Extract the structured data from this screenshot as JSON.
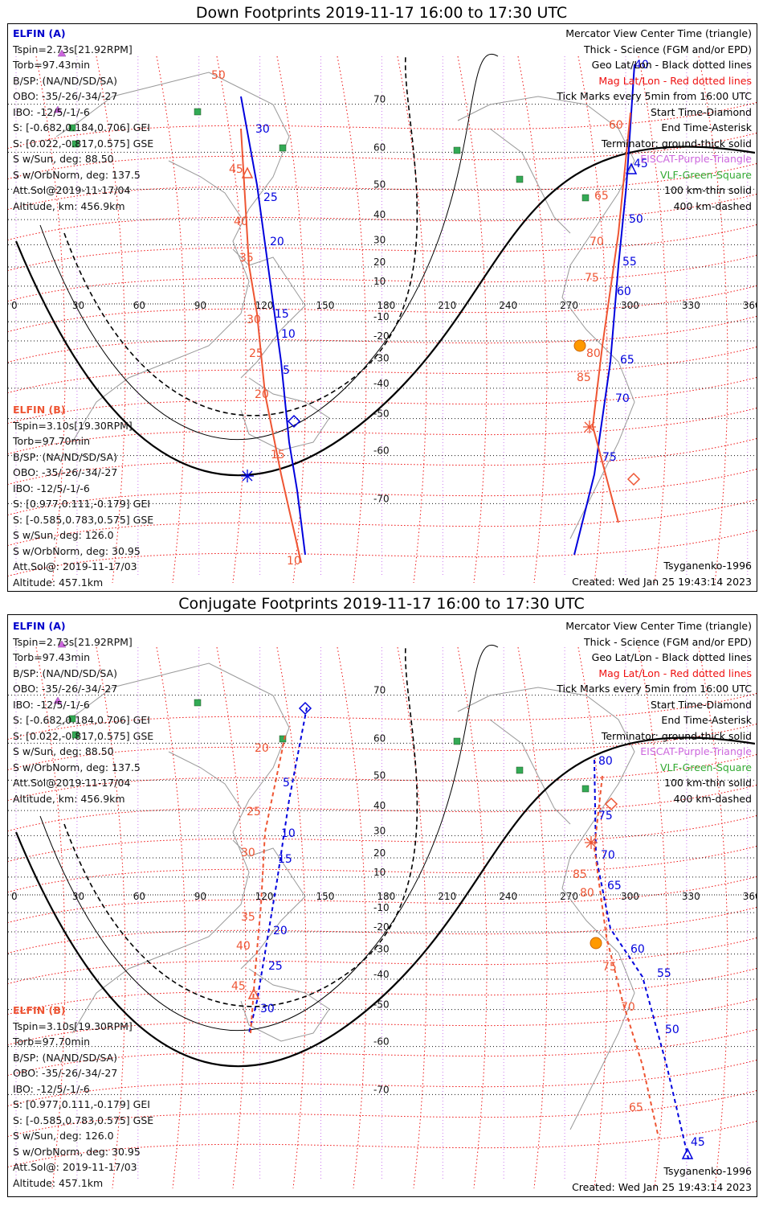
{
  "panels": [
    {
      "title": "Down Footprints 2019-11-17 16:00 to 17:30 UTC",
      "elfin_a": {
        "name": "ELFIN (A)",
        "lines": [
          "Tspin=2.73s[21.92RPM]",
          "Torb=97.43min",
          "B/SP: (NA/ND/SD/SA)",
          "OBO: -35/-26/-34/-27",
          "IBO: -12/5/-1/-6",
          "S: [-0.682,0.184,0.706] GEI",
          "S: [0.022,-0.817,0.575] GSE",
          "S w/Sun, deg: 88.50",
          "S w/OrbNorm, deg: 137.5",
          "Att.Sol@2019-11-17/04",
          "Altitude, km: 456.9km"
        ]
      },
      "elfin_b": {
        "name": "ELFIN (B)",
        "lines": [
          "Tspin=3.10s[19.30RPM]",
          "Torb=97.70min",
          "B/SP: (NA/ND/SD/SA)",
          "OBO: -35/-26/-34/-27",
          "IBO: -12/5/-1/-6",
          "S: [0.977,0.111,-0.179] GEI",
          "S: [-0.585,0.783,0.575] GSE",
          "S w/Sun, deg: 126.0",
          "S w/OrbNorm, deg: 30.95",
          "Att.Sol@: 2019-11-17/03",
          "Altitude: 457.1km"
        ]
      },
      "legend": [
        {
          "text": "Mercator View Center Time (triangle)",
          "color": "#111111"
        },
        {
          "text": "Thick - Science (FGM and/or EPD)",
          "color": "#111111"
        },
        {
          "text": "Geo Lat/Lon - Black dotted lines",
          "color": "#111111"
        },
        {
          "text": "Mag Lat/Lon - Red dotted lines",
          "color": "#ee1111"
        },
        {
          "text": "Tick Marks every 5min from 16:00 UTC",
          "color": "#111111"
        },
        {
          "text": "Start Time-Diamond",
          "color": "#111111"
        },
        {
          "text": "End Time-Asterisk",
          "color": "#111111"
        },
        {
          "text": "Terminator: ground-thick solid",
          "color": "#111111"
        },
        {
          "text": "EISCAT-Purple-Triangle",
          "color": "#cc66dd"
        },
        {
          "text": "VLF-Green-Square",
          "color": "#33aa33"
        },
        {
          "text": "100 km-thin solid",
          "color": "#111111"
        },
        {
          "text": "400 km-dashed",
          "color": "#111111"
        }
      ],
      "model": "Tsyganenko-1996",
      "created": "Created: Wed Jan 25 19:43:14 2023"
    },
    {
      "title": "Conjugate Footprints 2019-11-17 16:00 to 17:30 UTC",
      "elfin_a": {
        "name": "ELFIN (A)",
        "lines": [
          "Tspin=2.73s[21.92RPM]",
          "Torb=97.43min",
          "B/SP: (NA/ND/SD/SA)",
          "OBO: -35/-26/-34/-27",
          "IBO: -12/5/-1/-6",
          "S: [-0.682,0.184,0.706] GEI",
          "S: [0.022,-0.817,0.575] GSE",
          "S w/Sun, deg: 88.50",
          "S w/OrbNorm, deg: 137.5",
          "Att.Sol@2019-11-17/04",
          "Altitude, km: 456.9km"
        ]
      },
      "elfin_b": {
        "name": "ELFIN (B)",
        "lines": [
          "Tspin=3.10s[19.30RPM]",
          "Torb=97.70min",
          "B/SP: (NA/ND/SD/SA)",
          "OBO: -35/-26/-34/-27",
          "IBO: -12/5/-1/-6",
          "S: [0.977,0.111,-0.179] GEI",
          "S: [-0.585,0.783,0.575] GSE",
          "S w/Sun, deg: 126.0",
          "S w/OrbNorm, deg: 30.95",
          "Att.Sol@: 2019-11-17/03",
          "Altitude: 457.1km"
        ]
      },
      "legend": [
        {
          "text": "Mercator View Center Time (triangle)",
          "color": "#111111"
        },
        {
          "text": "Thick - Science (FGM and/or EPD)",
          "color": "#111111"
        },
        {
          "text": "Geo Lat/Lon - Black dotted lines",
          "color": "#111111"
        },
        {
          "text": "Mag Lat/Lon - Red dotted lines",
          "color": "#ee1111"
        },
        {
          "text": "Tick Marks every 5min from 16:00 UTC",
          "color": "#111111"
        },
        {
          "text": "Start Time-Diamond",
          "color": "#111111"
        },
        {
          "text": "End Time-Asterisk",
          "color": "#111111"
        },
        {
          "text": "Terminator: ground-thick solid",
          "color": "#111111"
        },
        {
          "text": "EISCAT-Purple-Triangle",
          "color": "#cc66dd"
        },
        {
          "text": "VLF-Green-Square",
          "color": "#33aa33"
        },
        {
          "text": "100 km-thin solid",
          "color": "#111111"
        },
        {
          "text": "400 km-dashed",
          "color": "#111111"
        }
      ],
      "model": "Tsyganenko-1996",
      "created": "Created: Wed Jan 25 19:43:14 2023"
    }
  ],
  "axis": {
    "lon_ticks": [
      "0",
      "30",
      "60",
      "90",
      "120",
      "150",
      "180",
      "210",
      "240",
      "270",
      "300",
      "330",
      "360"
    ],
    "lat_ticks": [
      "70",
      "60",
      "50",
      "40",
      "30",
      "20",
      "10",
      "-10",
      "-20",
      "-30",
      "-40",
      "-50",
      "-60",
      "-70"
    ]
  },
  "colors": {
    "elfin_a": "#0000dd",
    "elfin_b": "#ee5533",
    "mag_grid": "#ee1111",
    "geo_grid": "#111111",
    "sun": "#ff9900",
    "vlf": "#33aa55",
    "eiscat": "#cc66dd"
  },
  "tracks": {
    "down_a_labels": [
      "30",
      "25",
      "20",
      "15",
      "10",
      "5",
      "45",
      "50",
      "55",
      "60",
      "65",
      "70",
      "75",
      "40"
    ],
    "down_b_labels": [
      "50",
      "45",
      "40",
      "35",
      "30",
      "25",
      "20",
      "15",
      "10",
      "60",
      "65",
      "70",
      "75",
      "80",
      "85"
    ],
    "conj_a_labels": [
      "5",
      "10",
      "15",
      "20",
      "25",
      "30",
      "80",
      "75",
      "70",
      "65",
      "60",
      "55",
      "50",
      "45"
    ],
    "conj_b_labels": [
      "20",
      "25",
      "30",
      "35",
      "40",
      "45",
      "85",
      "80",
      "75",
      "70",
      "65"
    ]
  }
}
